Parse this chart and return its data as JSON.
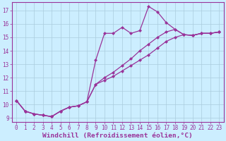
{
  "xlabel": "Windchill (Refroidissement éolien,°C)",
  "background_color": "#cceeff",
  "grid_color": "#aaccdd",
  "line_color": "#993399",
  "marker": "D",
  "markersize": 2.5,
  "linewidth": 0.9,
  "xlim": [
    -0.5,
    23.5
  ],
  "ylim": [
    8.7,
    17.6
  ],
  "yticks": [
    9,
    10,
    11,
    12,
    13,
    14,
    15,
    16,
    17
  ],
  "xticks": [
    0,
    1,
    2,
    3,
    4,
    5,
    6,
    7,
    8,
    9,
    10,
    11,
    12,
    13,
    14,
    15,
    16,
    17,
    18,
    19,
    20,
    21,
    22,
    23
  ],
  "line1_x": [
    0,
    1,
    2,
    3,
    4,
    5,
    6,
    7,
    8,
    9,
    10,
    11,
    12,
    13,
    14,
    15,
    16,
    17,
    18,
    19,
    20,
    21,
    22,
    23
  ],
  "line1_y": [
    10.3,
    9.5,
    9.3,
    9.2,
    9.1,
    9.5,
    9.8,
    9.9,
    10.2,
    13.3,
    15.3,
    15.3,
    15.75,
    15.3,
    15.5,
    17.3,
    16.9,
    16.1,
    15.6,
    15.2,
    15.15,
    15.3,
    15.3,
    15.4
  ],
  "line2_x": [
    0,
    1,
    2,
    3,
    4,
    5,
    6,
    7,
    8,
    9,
    10,
    11,
    12,
    13,
    14,
    15,
    16,
    17,
    18,
    19,
    20,
    21,
    22,
    23
  ],
  "line2_y": [
    10.3,
    9.5,
    9.3,
    9.2,
    9.1,
    9.5,
    9.8,
    9.9,
    10.2,
    11.5,
    12.0,
    12.4,
    12.9,
    13.4,
    14.0,
    14.5,
    15.0,
    15.4,
    15.6,
    15.2,
    15.15,
    15.3,
    15.3,
    15.4
  ],
  "line3_x": [
    0,
    1,
    2,
    3,
    4,
    5,
    6,
    7,
    8,
    9,
    10,
    11,
    12,
    13,
    14,
    15,
    16,
    17,
    18,
    19,
    20,
    21,
    22,
    23
  ],
  "line3_y": [
    10.3,
    9.5,
    9.3,
    9.2,
    9.1,
    9.5,
    9.8,
    9.9,
    10.2,
    11.5,
    11.8,
    12.1,
    12.5,
    12.9,
    13.3,
    13.7,
    14.2,
    14.7,
    15.0,
    15.2,
    15.15,
    15.3,
    15.3,
    15.4
  ],
  "tick_fontsize": 5.5,
  "label_fontsize": 6.8,
  "spine_color": "#993399"
}
